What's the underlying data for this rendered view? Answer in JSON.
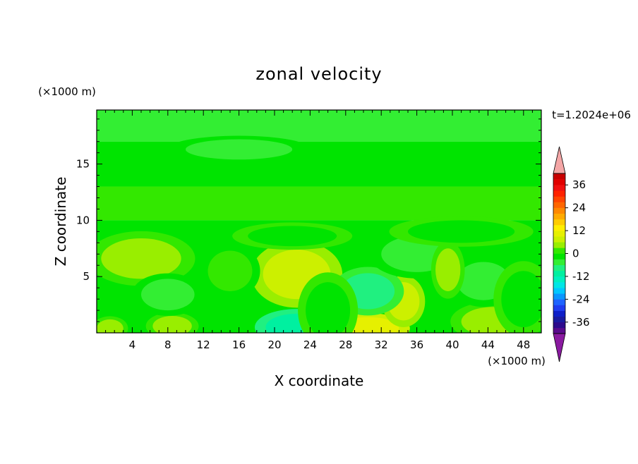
{
  "chart_data": {
    "type": "heatmap",
    "title": "zonal velocity",
    "xlabel": "X coordinate",
    "ylabel": "Z coordinate",
    "x_unit": "(×1000 m)",
    "y_unit": "(×1000 m)",
    "time_label": "t=1.2024e+06",
    "xlim": [
      0,
      50
    ],
    "ylim": [
      0,
      19.8
    ],
    "x_ticks": [
      4,
      8,
      12,
      16,
      20,
      24,
      28,
      32,
      36,
      40,
      44,
      48
    ],
    "y_ticks": [
      5,
      10,
      15
    ],
    "colorbar": {
      "levels": [
        -42,
        -39,
        -36,
        -33,
        -30,
        -27,
        -24,
        -21,
        -18,
        -15,
        -12,
        -9,
        -6,
        -3,
        0,
        3,
        6,
        9,
        12,
        15,
        18,
        21,
        24,
        27,
        30,
        33,
        36,
        39,
        42
      ],
      "colors": [
        "#5a0a8c",
        "#2d0a8c",
        "#1a1aa0",
        "#0f1fc8",
        "#1f3cf0",
        "#1e64ff",
        "#0a96ff",
        "#00c8ff",
        "#00e6e6",
        "#00f0c0",
        "#00f0a0",
        "#20f080",
        "#33ee33",
        "#00e400",
        "#33e800",
        "#99ee00",
        "#ccf000",
        "#e6f000",
        "#ffee00",
        "#ffcc00",
        "#ffaa00",
        "#ff8800",
        "#ff6600",
        "#ff4400",
        "#ff2200",
        "#f01010",
        "#e00000",
        "#c80000"
      ],
      "tick_labels": [
        "36",
        "24",
        "12",
        "0",
        "-12",
        "-24",
        "-36"
      ],
      "tick_values": [
        36,
        24,
        12,
        0,
        -12,
        -24,
        -36
      ],
      "over_color": "#f4a6a6",
      "under_color": "#8a1aa0"
    },
    "field": {
      "background": 0,
      "bands": [
        {
          "zmin": 17.0,
          "zmax": 19.8,
          "value": -5
        },
        {
          "zmin": 13.0,
          "zmax": 17.0,
          "value": -2
        },
        {
          "zmin": 10.0,
          "zmax": 13.0,
          "value": 0
        },
        {
          "zmin": 0.0,
          "zmax": 10.0,
          "value": -1
        }
      ],
      "blobs": [
        {
          "x": 16,
          "z": 16.3,
          "rx": 6,
          "rz": 0.9,
          "value": -6
        },
        {
          "x": 5,
          "z": 6.6,
          "rx": 4.5,
          "rz": 1.8,
          "value": 4
        },
        {
          "x": 22.5,
          "z": 5.2,
          "rx": 3.8,
          "rz": 2.2,
          "value": 7
        },
        {
          "x": 22.5,
          "z": 0.5,
          "rx": 3.5,
          "rz": 1.2,
          "value": -10
        },
        {
          "x": 30.5,
          "z": 0.4,
          "rx": 3.5,
          "rz": 1.0,
          "value": 9
        },
        {
          "x": 34.5,
          "z": 2.8,
          "rx": 1.8,
          "rz": 1.7,
          "value": 8
        },
        {
          "x": 44.5,
          "z": 1.0,
          "rx": 3.5,
          "rz": 1.3,
          "value": 5
        },
        {
          "x": 43.5,
          "z": 4.6,
          "rx": 3.0,
          "rz": 1.7,
          "value": -6
        },
        {
          "x": 8.5,
          "z": 0.6,
          "rx": 2.2,
          "rz": 0.9,
          "value": 5
        },
        {
          "x": 30.5,
          "z": 3.7,
          "rx": 3.0,
          "rz": 1.6,
          "value": -8
        },
        {
          "x": 36,
          "z": 7.0,
          "rx": 4.0,
          "rz": 1.6,
          "value": -5
        },
        {
          "x": 8,
          "z": 3.4,
          "rx": 3.0,
          "rz": 1.4,
          "value": -5
        },
        {
          "x": 39.5,
          "z": 5.6,
          "rx": 1.4,
          "rz": 1.9,
          "value": 4
        },
        {
          "x": 15,
          "z": 5.5,
          "rx": 2.5,
          "rz": 1.8,
          "value": 2
        },
        {
          "x": 1.5,
          "z": 0.4,
          "rx": 1.5,
          "rz": 0.8,
          "value": 3
        },
        {
          "x": 26,
          "z": 2.0,
          "rx": 2.5,
          "rz": 2.5,
          "value": -2
        },
        {
          "x": 48,
          "z": 3.0,
          "rx": 2.5,
          "rz": 2.5,
          "value": -2
        },
        {
          "x": 22,
          "z": 8.6,
          "rx": 5,
          "rz": 0.9,
          "value": -3
        },
        {
          "x": 41,
          "z": 9.0,
          "rx": 6,
          "rz": 1.0,
          "value": -3
        }
      ]
    }
  }
}
